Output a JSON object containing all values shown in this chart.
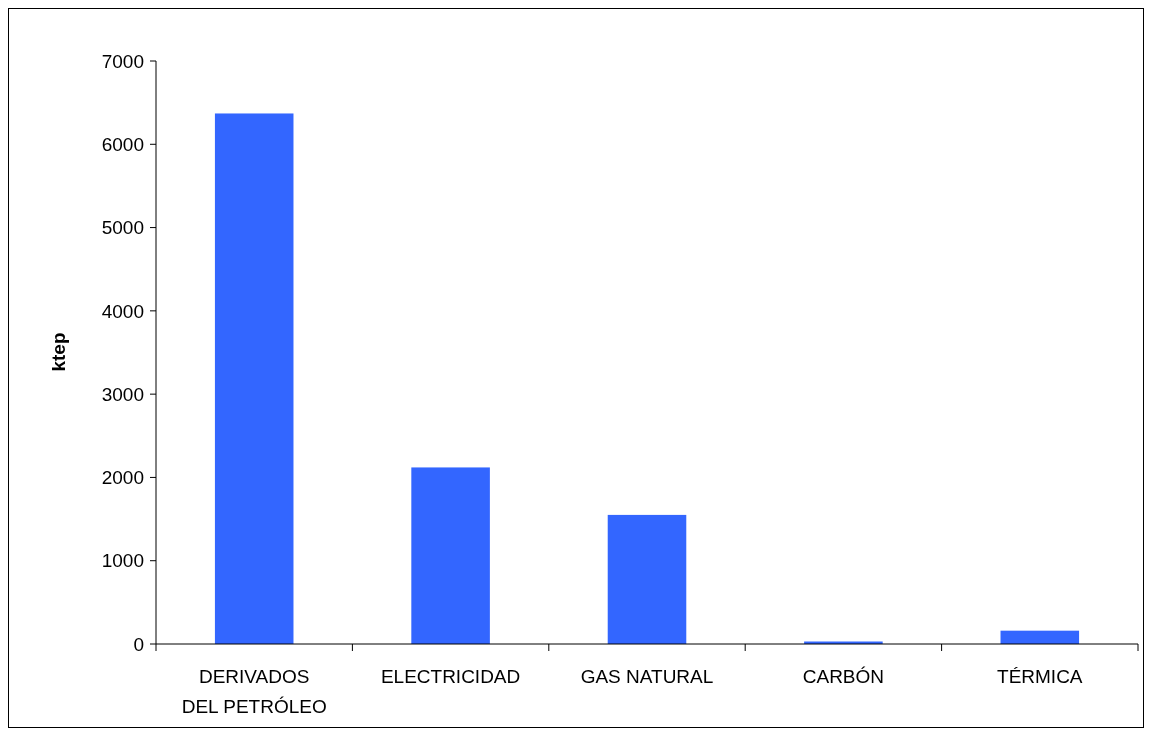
{
  "chart_data": {
    "type": "bar",
    "ylabel": "ktep",
    "categories": [
      "DERIVADOS DEL PETRÓLEO",
      "ELECTRICIDAD",
      "GAS NATURAL",
      "CARBÓN",
      "TÉRMICA"
    ],
    "values": [
      6370,
      2120,
      1550,
      30,
      160
    ],
    "color": "#3366ff",
    "ylim": [
      0,
      7000
    ],
    "yticks": [
      0,
      1000,
      2000,
      3000,
      4000,
      5000,
      6000,
      7000
    ],
    "grid": false
  }
}
